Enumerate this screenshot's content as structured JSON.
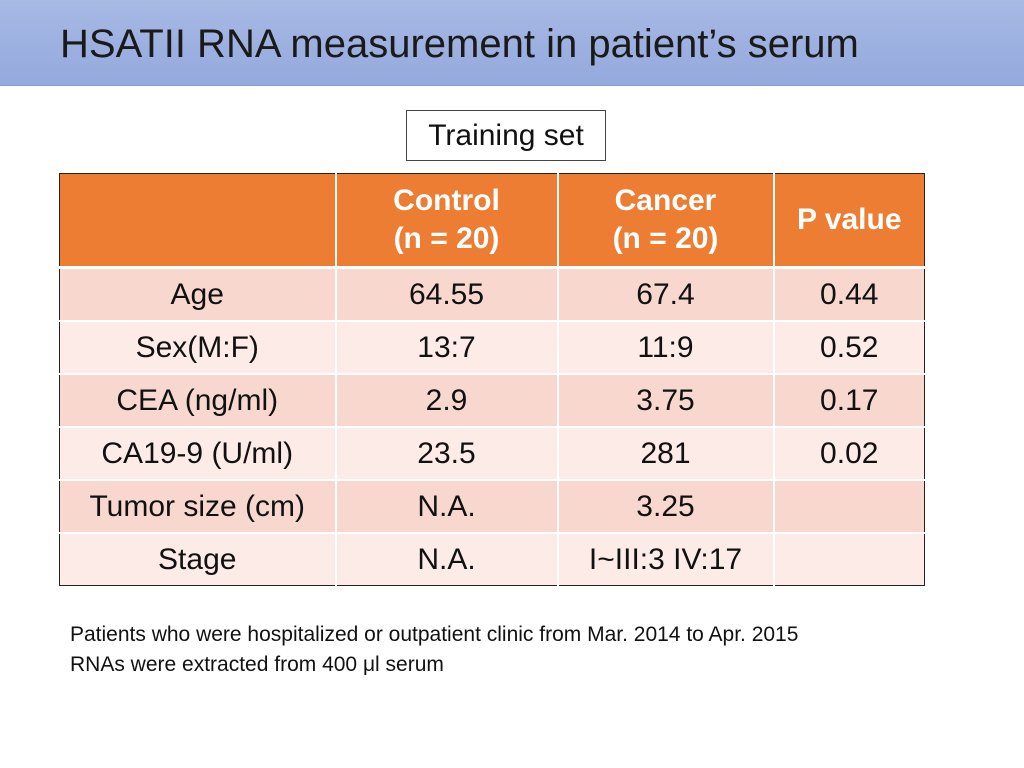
{
  "slide": {
    "title": "HSATII RNA measurement in patient’s serum",
    "subtitle": "Training set"
  },
  "table": {
    "headers": [
      {
        "line1": "",
        "line2": ""
      },
      {
        "line1": "Control",
        "line2": "(n = 20)"
      },
      {
        "line1": "Cancer",
        "line2": "(n = 20)"
      },
      {
        "line1": "P value",
        "line2": ""
      }
    ],
    "rows": [
      [
        "Age",
        "64.55",
        "67.4",
        "0.44"
      ],
      [
        "Sex(M:F)",
        "13:7",
        "11:9",
        "0.52"
      ],
      [
        "CEA (ng/ml)",
        "2.9",
        "3.75",
        "0.17"
      ],
      [
        "CA19-9 (U/ml)",
        "23.5",
        "281",
        "0.02"
      ],
      [
        "Tumor size (cm)",
        "N.A.",
        "3.25",
        ""
      ],
      [
        "Stage",
        "N.A.",
        "I~III:3 IV:17",
        ""
      ]
    ]
  },
  "footnotes": [
    "Patients who were hospitalized or outpatient clinic from Mar. 2014 to Apr. 2015",
    "RNAs were extracted from 400 μl serum"
  ],
  "colors": {
    "title_bar": "#9eb2e1",
    "header_fill": "#ec7d33",
    "row_dark": "#f8d8ce",
    "row_light": "#fcebe7"
  }
}
